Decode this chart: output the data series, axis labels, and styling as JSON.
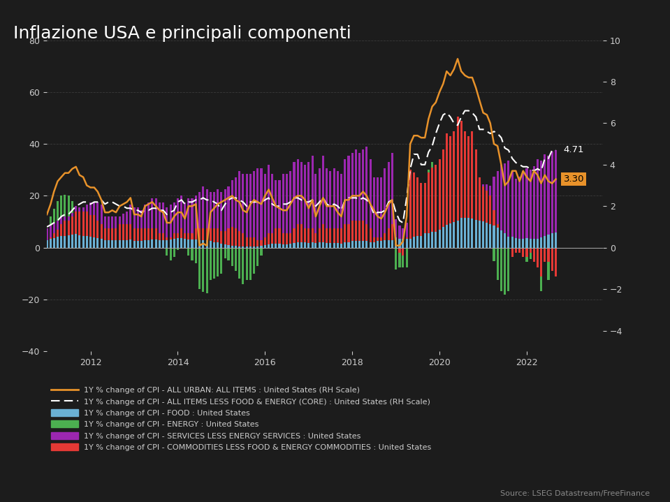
{
  "title": "Inflazione USA e principali componenti",
  "background_color": "#1c1c1c",
  "text_color": "#cccccc",
  "grid_color": "#3a3a3a",
  "source_text": "Source: LSEG Datastream/FreeFinance",
  "left_ylim": [
    -40,
    80
  ],
  "right_ylim": [
    -5,
    10
  ],
  "left_yticks": [
    -40,
    -20,
    0,
    20,
    40,
    60,
    80
  ],
  "right_yticks": [
    -4,
    -2,
    0,
    2,
    4,
    6,
    8,
    10
  ],
  "label_cpi_all": "1Y % change of CPI - ALL URBAN: ALL ITEMS : United States (RH Scale)",
  "label_cpi_core": "1Y % change of CPI - ALL ITEMS LESS FOOD & ENERGY (CORE) : United States (RH Scale)",
  "label_food": "1Y % change of CPI - FOOD : United States",
  "label_energy": "1Y % change of CPI - ENERGY : United States",
  "label_services": "1Y % change of CPI - SERVICES LESS ENERGY SERVICES : United States",
  "label_commodities": "1Y % change of CPI - COMMODITIES LESS FOOD & ENERGY COMMODITIES : United States",
  "color_cpi_all": "#e8922a",
  "color_cpi_core": "#ffffff",
  "color_food": "#6ab0d4",
  "color_energy": "#4caf50",
  "color_services": "#9c27b0",
  "color_commodities": "#e53935",
  "end_label_core": "4.71",
  "end_label_cpi": "3.30",
  "end_label_cpi_bg": "#e8922a"
}
